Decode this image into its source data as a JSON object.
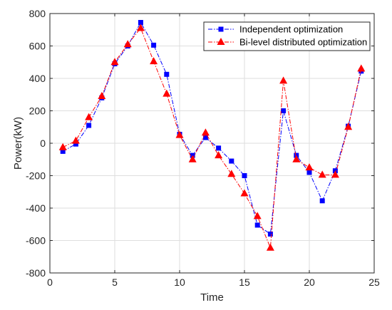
{
  "chart_data": {
    "type": "line",
    "title": "",
    "xlabel": "Time",
    "ylabel": "Power(kW)",
    "xlim": [
      0,
      25
    ],
    "ylim": [
      -800,
      800
    ],
    "xticks": [
      0,
      5,
      10,
      15,
      20,
      25
    ],
    "yticks": [
      -800,
      -600,
      -400,
      -200,
      0,
      200,
      400,
      600,
      800
    ],
    "grid": true,
    "legend_position": "top-right",
    "x": [
      1,
      2,
      3,
      4,
      5,
      6,
      7,
      8,
      9,
      10,
      11,
      12,
      13,
      14,
      15,
      16,
      17,
      18,
      19,
      20,
      21,
      22,
      23,
      24
    ],
    "series": [
      {
        "name": "Independent optimization",
        "color": "#0000ff",
        "marker": "square",
        "line_style": "dash-dot",
        "values": [
          -50,
          -5,
          110,
          280,
          490,
          600,
          745,
          605,
          425,
          55,
          -75,
          35,
          -30,
          -110,
          -200,
          -505,
          -560,
          200,
          -75,
          -180,
          -355,
          -170,
          105,
          445
        ]
      },
      {
        "name": "Bi-level distributed optimization",
        "color": "#ff0000",
        "marker": "triangle",
        "line_style": "dash-dot",
        "values": [
          -25,
          15,
          160,
          290,
          500,
          610,
          710,
          505,
          305,
          50,
          -100,
          65,
          -75,
          -190,
          -310,
          -450,
          -645,
          385,
          -100,
          -150,
          -195,
          -195,
          100,
          460
        ]
      }
    ]
  }
}
